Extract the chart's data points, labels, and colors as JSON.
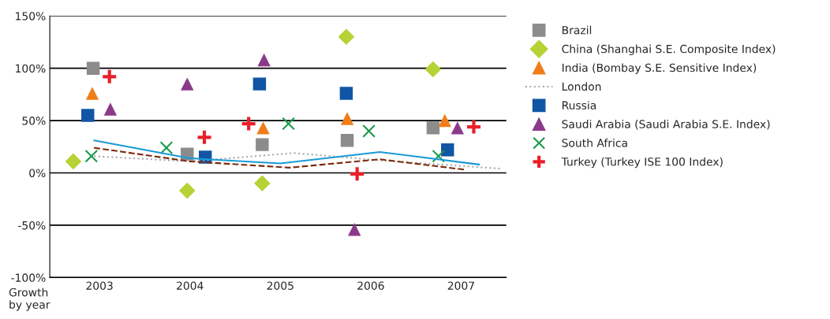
{
  "chart_data": {
    "type": "scatter",
    "xlabel": "Growth\nby year",
    "xlim": [
      2002.45,
      2007.5
    ],
    "xticks": [
      2003,
      2004,
      2005,
      2006,
      2007
    ],
    "ylim": [
      -100,
      150
    ],
    "yticks": [
      {
        "value": -100,
        "label": "-100%"
      },
      {
        "value": -50,
        "label": "-50%"
      },
      {
        "value": 0,
        "label": "0%"
      },
      {
        "value": 50,
        "label": "50%"
      },
      {
        "value": 100,
        "label": "100%"
      },
      {
        "value": 150,
        "label": "150%"
      }
    ],
    "grid": "y",
    "legend": "right",
    "series": [
      {
        "name": "Brazil",
        "marker": "square",
        "color": "#8c8c8c",
        "x": [
          2002.93,
          2003.97,
          2004.8,
          2005.74,
          2006.69
        ],
        "values": [
          100,
          18,
          27,
          31,
          43
        ]
      },
      {
        "name": "China (Shanghai S.E. Composite Index)",
        "marker": "diamond",
        "color": "#b5d334",
        "x": [
          2002.71,
          2003.97,
          2004.8,
          2005.73,
          2006.69
        ],
        "values": [
          11,
          -17,
          -10,
          130,
          99
        ]
      },
      {
        "name": "India (Bombay S.E. Sensitive Index)",
        "marker": "triangle",
        "color": "#f07d1a",
        "x": [
          2002.92,
          2004.81,
          2005.74,
          2006.82
        ],
        "values": [
          76,
          43,
          52,
          50
        ]
      },
      {
        "name": "London",
        "type": "line",
        "marker": "none",
        "line_style": "dotted",
        "color": "#aaaaaa",
        "x": [
          2002.94,
          2004.0,
          2005.15,
          2006.1,
          2007.45
        ],
        "values": [
          16,
          11,
          19,
          12,
          4
        ]
      },
      {
        "type": "line",
        "marker": "none",
        "line_style": "solid",
        "color": "#1a9ad6",
        "x": [
          2002.94,
          2004.0,
          2005.0,
          2006.1,
          2007.2
        ],
        "values": [
          31,
          14,
          9,
          20,
          8
        ]
      },
      {
        "name": "Russia",
        "marker": "square",
        "color": "#1155a5",
        "x": [
          2002.87,
          2004.17,
          2004.77,
          2005.73,
          2006.85
        ],
        "values": [
          55,
          15,
          85,
          76,
          22
        ]
      },
      {
        "type": "line",
        "marker": "none",
        "line_style": "dashed",
        "color": "#7b2a0c",
        "x": [
          2002.94,
          2004.0,
          2005.1,
          2006.1,
          2007.05
        ],
        "values": [
          24,
          11,
          5,
          13,
          3
        ]
      },
      {
        "name": "Saudi Arabia (Saudi Arabia S.E. Index)",
        "marker": "triangle",
        "color": "#8b3a8b",
        "x": [
          2003.12,
          2003.97,
          2004.82,
          2005.82,
          2006.96
        ],
        "values": [
          61,
          85,
          108,
          -54,
          43
        ]
      },
      {
        "name": "South Africa",
        "marker": "cross",
        "color": "#1a9a4a",
        "x": [
          2002.91,
          2003.74,
          2005.09,
          2005.98,
          2006.75
        ],
        "values": [
          16,
          24,
          47,
          40,
          16
        ]
      },
      {
        "name": "Turkey (Turkey ISE 100 Index)",
        "marker": "plus",
        "color": "#e8202a",
        "x": [
          2003.11,
          2004.16,
          2004.65,
          2005.85,
          2007.14
        ],
        "values": [
          92,
          34,
          47,
          -1,
          44
        ]
      }
    ]
  }
}
